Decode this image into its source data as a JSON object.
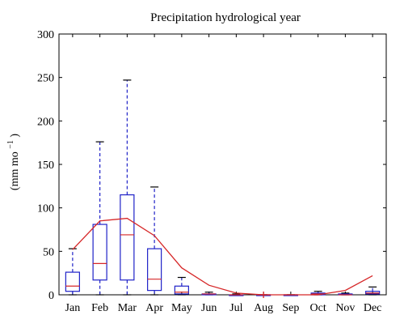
{
  "chart_data": {
    "type": "box",
    "title": "Precipitation hydrological year",
    "ylabel": {
      "base": "(mm mo",
      "superscript": "−1",
      "suffix": ")"
    },
    "ylim": [
      0,
      300
    ],
    "yticks": [
      0,
      50,
      100,
      150,
      200,
      250,
      300
    ],
    "categories": [
      "Jan",
      "Feb",
      "Mar",
      "Apr",
      "May",
      "Jun",
      "Jul",
      "Aug",
      "Sep",
      "Oct",
      "Nov",
      "Dec"
    ],
    "boxes": [
      {
        "min": 0,
        "q1": 4,
        "median": 10,
        "q3": 26,
        "max": 53
      },
      {
        "min": 0,
        "q1": 17,
        "median": 36,
        "q3": 81,
        "max": 176
      },
      {
        "min": 0,
        "q1": 17,
        "median": 69,
        "q3": 115,
        "max": 247
      },
      {
        "min": 0,
        "q1": 5,
        "median": 18,
        "q3": 53,
        "max": 124
      },
      {
        "min": 0,
        "q1": 1,
        "median": 3,
        "q3": 10,
        "max": 20
      },
      {
        "min": 0,
        "q1": 0,
        "median": 1,
        "q3": 1,
        "max": 3
      },
      {
        "min": 0,
        "q1": 0,
        "median": 0,
        "q3": 0,
        "max": 1
      },
      {
        "min": 0,
        "q1": 0,
        "median": 0,
        "q3": 0,
        "max": 0
      },
      {
        "min": 0,
        "q1": 0,
        "median": 0,
        "q3": 0,
        "max": 0
      },
      {
        "min": 0,
        "q1": 0,
        "median": 1,
        "q3": 2,
        "max": 4
      },
      {
        "min": 0,
        "q1": 0,
        "median": 0,
        "q3": 1,
        "max": 2
      },
      {
        "min": 0,
        "q1": 1,
        "median": 2,
        "q3": 4,
        "max": 9
      }
    ],
    "outliers": [
      {
        "month": "Aug",
        "value": 0
      }
    ],
    "series": [
      {
        "values": [
          52,
          85,
          88,
          68,
          31,
          11,
          2,
          0,
          0,
          0,
          5,
          22
        ]
      }
    ],
    "colors": {
      "box": "#1f22c8",
      "median": "#d62728",
      "line": "#d62728",
      "outlier": "#d62728",
      "axis": "#000000",
      "background": "#ffffff"
    }
  }
}
